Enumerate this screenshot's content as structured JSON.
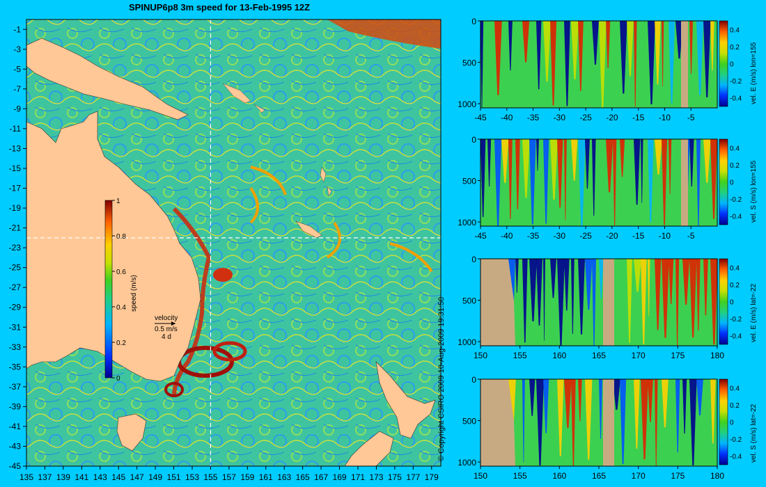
{
  "title": "SPINUP6p8 3m speed for 13-Feb-1995 12Z",
  "copyright": "© Copyright CSIRO 2009   10-Aug-2009 19:31:50",
  "colors": {
    "background": "#00ccff",
    "land": "#ffc896",
    "section_land": "#c8aa82",
    "crosshair": "#ffffff"
  },
  "map": {
    "lon_ticks": [
      "135",
      "137",
      "139",
      "141",
      "143",
      "145",
      "147",
      "149",
      "151",
      "153",
      "155",
      "157",
      "159",
      "161",
      "163",
      "165",
      "167",
      "169",
      "171",
      "173",
      "175",
      "177",
      "179"
    ],
    "lat_ticks": [
      "-1",
      "-3",
      "-5",
      "-7",
      "-9",
      "-11",
      "-13",
      "-15",
      "-17",
      "-19",
      "-21",
      "-23",
      "-25",
      "-27",
      "-29",
      "-31",
      "-33",
      "-35",
      "-37",
      "-39",
      "-41",
      "-43",
      "-45"
    ],
    "lon_range": [
      135,
      180
    ],
    "lat_range": [
      -45,
      0
    ],
    "crosshair_lon": 155,
    "crosshair_lat": -22,
    "colorbar": {
      "label": "speed (m/s)",
      "ticks": [
        "1",
        "0.8",
        "0.6",
        "0.4",
        "0.2",
        "0"
      ],
      "range": [
        0,
        1
      ]
    },
    "velocity_key": {
      "label": "velocity",
      "value": "0.5 m/s",
      "period": "4 d"
    }
  },
  "sections": [
    {
      "id": "vel-e-lon155",
      "label": "vel. E (m/s) lon=155",
      "x_ticks": [
        "-45",
        "-40",
        "-35",
        "-30",
        "-25",
        "-20",
        "-15",
        "-10",
        "-5"
      ],
      "x_range": [
        -45,
        0
      ],
      "y_ticks": [
        "0",
        "500",
        "1000"
      ],
      "cbar_ticks": [
        "0.4",
        "0.2",
        "0",
        "-0.2",
        "-0.4"
      ]
    },
    {
      "id": "vel-s-lon155",
      "label": "vel. S (m/s) lon=155",
      "x_ticks": [
        "-45",
        "-40",
        "-35",
        "-30",
        "-25",
        "-20",
        "-15",
        "-10",
        "-5"
      ],
      "x_range": [
        -45,
        0
      ],
      "y_ticks": [
        "0",
        "500",
        "1000"
      ],
      "cbar_ticks": [
        "0.4",
        "0.2",
        "0",
        "-0.2",
        "-0.4"
      ]
    },
    {
      "id": "vel-e-lat22",
      "label": "vel. E (m/s) lat=-22",
      "x_ticks": [
        "150",
        "155",
        "160",
        "165",
        "170",
        "175",
        "180"
      ],
      "x_range": [
        150,
        180
      ],
      "y_ticks": [
        "0",
        "500",
        "1000"
      ],
      "cbar_ticks": [
        "0.4",
        "0.2",
        "0",
        "-0.2",
        "-0.4"
      ]
    },
    {
      "id": "vel-s-lat22",
      "label": "vel. S (m/s) lat=-22",
      "x_ticks": [
        "150",
        "155",
        "160",
        "165",
        "170",
        "175",
        "180"
      ],
      "x_range": [
        150,
        180
      ],
      "y_ticks": [
        "0",
        "500",
        "1000"
      ],
      "cbar_ticks": [
        "0.4",
        "0.2",
        "0",
        "-0.2",
        "-0.4"
      ]
    }
  ]
}
